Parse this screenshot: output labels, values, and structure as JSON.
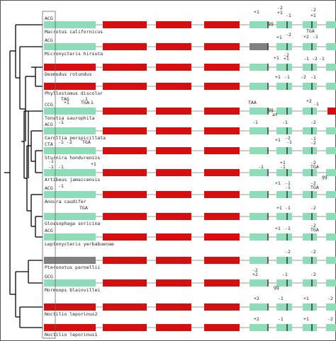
{
  "rows": [
    {
      "start": "ACG",
      "name": "Macrotus californicus",
      "labels": [
        "+1",
        "-2",
        "+1",
        "-1",
        "gg",
        "-2",
        "+1"
      ]
    },
    {
      "start": "ACG",
      "name": "Micronycteris hirsuta",
      "labels": [
        "+1",
        "-2",
        "TGA",
        "+2",
        "-1"
      ]
    },
    {
      "name": "Desmodus rotundus",
      "labels": [
        "+1",
        "-2",
        "+1",
        "-1",
        "-2",
        "-1"
      ]
    },
    {
      "name": "Phyllostomus discolor",
      "labels": [
        "+1",
        "-1",
        "-2",
        "-1"
      ]
    },
    {
      "start": "CCG",
      "name": "Tonatia saurophila",
      "labels": [
        "TAG",
        "+1",
        "-1",
        "TGA",
        "-1",
        "TAA",
        "gg",
        "at",
        "+2",
        "-1"
      ]
    },
    {
      "start": "ACG",
      "name": "Carollia perspicillata",
      "labels": [
        "-1",
        "-1",
        "-1",
        "-2"
      ]
    },
    {
      "start": "CTA",
      "name": "Sturnira hondurensis",
      "labels": [
        "-1",
        "-2",
        "TGA",
        "+1",
        "-2",
        "-1",
        "-1",
        "-2"
      ]
    },
    {
      "name": "Artibeus jamaicensis",
      "labels": [
        "-1",
        "-1",
        "-1",
        "+1",
        "-1",
        "+1",
        "-1",
        "-2",
        "TGA",
        "gg"
      ]
    },
    {
      "start": "ACG",
      "name": "Anoura caudifer",
      "labels": [
        "-1",
        "+1",
        "-1",
        "-1",
        "-2",
        "TGA"
      ]
    },
    {
      "name": "Glossophaga soricina",
      "labels": [
        "TGA",
        "+1",
        "-1",
        "-2"
      ]
    },
    {
      "start": "ACG",
      "name": "Leptonycteris yerbabuenae",
      "labels": [
        "+1",
        "-1",
        "-2",
        "TGA"
      ]
    },
    {
      "name": "Pteronotus parnellii",
      "labels": [
        "-2",
        "-2"
      ]
    },
    {
      "start": "GCG",
      "name": "Mormoops blainvillei",
      "labels": [
        "-2",
        "+2",
        "-1",
        "-2",
        "gg"
      ]
    },
    {
      "name": "Noctilio leporinus2",
      "labels": [
        "+2",
        "-1",
        "+1",
        "-2"
      ]
    },
    {
      "name": "Noctilio leporinus1",
      "labels": [
        "+2",
        "-1",
        "+1",
        "-2"
      ]
    }
  ]
}
